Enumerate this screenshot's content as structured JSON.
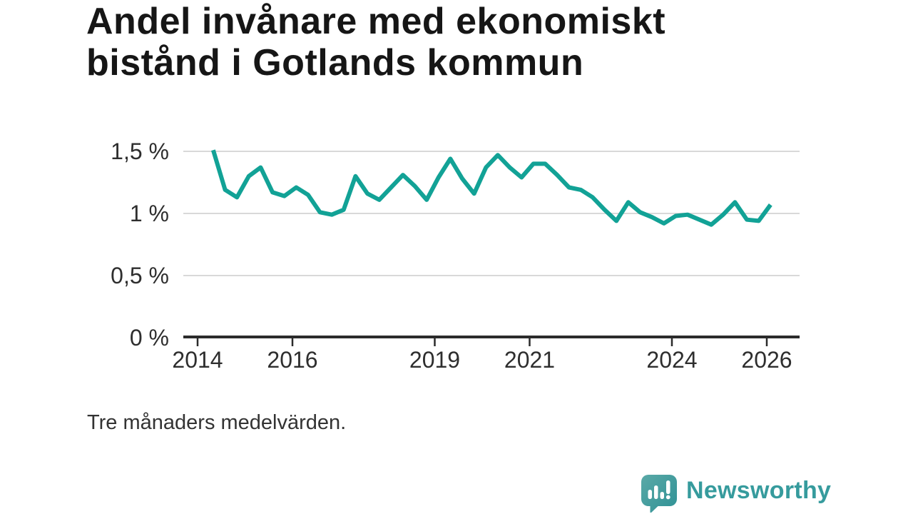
{
  "title": {
    "line1": "Andel invånare med ekonomiskt",
    "line2": "bistånd i Gotlands kommun"
  },
  "note": "Tre månaders medelvärden.",
  "logo": {
    "wordmark": "Newsworthy",
    "icon": "speech-bubble-bar-chart-icon"
  },
  "colors": {
    "line": "#12a296",
    "grid": "#d9d9d9",
    "axis": "#2b2b2b",
    "tick_text": "#2e2e2e",
    "title_text": "#161616",
    "logo_teal": "#369b9d",
    "logo_icon_light": "#5aa9a7",
    "logo_icon_dark": "#2f9195"
  },
  "chart_data": {
    "type": "line",
    "title": "Andel invånare med ekonomiskt bistånd i Gotlands kommun",
    "subtitle": "Tre månaders medelvärden.",
    "series_name": "Andel invånare med ekonomiskt bistånd",
    "unit": "%",
    "grid": "horizontal",
    "legend": "none",
    "x_start": 2014.33,
    "x_step": 0.25,
    "values": [
      1.51,
      1.19,
      1.13,
      1.3,
      1.37,
      1.17,
      1.14,
      1.21,
      1.15,
      1.01,
      0.99,
      1.03,
      1.3,
      1.16,
      1.11,
      1.21,
      1.31,
      1.22,
      1.11,
      1.29,
      1.44,
      1.28,
      1.16,
      1.37,
      1.47,
      1.37,
      1.29,
      1.4,
      1.4,
      1.31,
      1.21,
      1.19,
      1.13,
      1.03,
      0.94,
      1.09,
      1.01,
      0.97,
      0.92,
      0.98,
      0.99,
      0.95,
      0.91,
      0.99,
      1.09,
      0.95,
      0.94,
      1.07
    ],
    "x_ticks": [
      {
        "value": 2014,
        "label": "2014"
      },
      {
        "value": 2016,
        "label": "2016"
      },
      {
        "value": 2019,
        "label": "2019"
      },
      {
        "value": 2021,
        "label": "2021"
      },
      {
        "value": 2024,
        "label": "2024"
      },
      {
        "value": 2026,
        "label": "2026"
      }
    ],
    "y_ticks": [
      {
        "value": 0,
        "label": "0 %"
      },
      {
        "value": 0.5,
        "label": "0,5 %"
      },
      {
        "value": 1,
        "label": "1 %"
      },
      {
        "value": 1.5,
        "label": "1,5 %"
      }
    ],
    "ylim": [
      0,
      1.6
    ],
    "xlim": [
      2013.7,
      2026.7
    ]
  }
}
